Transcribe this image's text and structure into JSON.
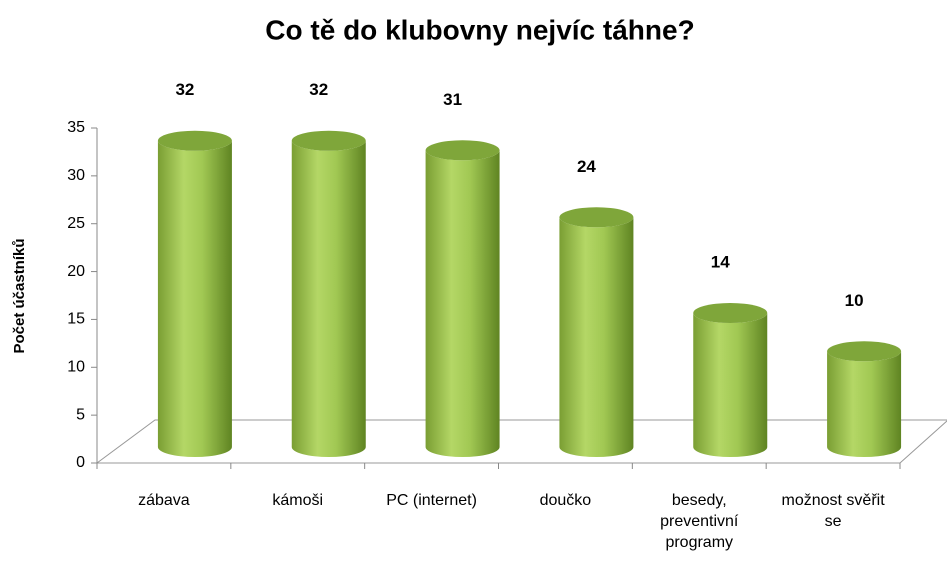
{
  "chart_data": {
    "type": "bar",
    "title": "Co tě do klubovny nejvíc táhne?",
    "y_label": "Počet účastníků",
    "categories": [
      "zábava",
      "kámoši",
      "PC (internet)",
      "doučko",
      "besedy, preventivní programy",
      "možnost svěřit se"
    ],
    "values": [
      32,
      32,
      31,
      24,
      14,
      10
    ],
    "color": "#9bc24a",
    "ylim": [
      0,
      35
    ],
    "yticks": [
      0,
      5,
      10,
      15,
      20,
      25,
      30,
      35
    ],
    "grid": false
  }
}
